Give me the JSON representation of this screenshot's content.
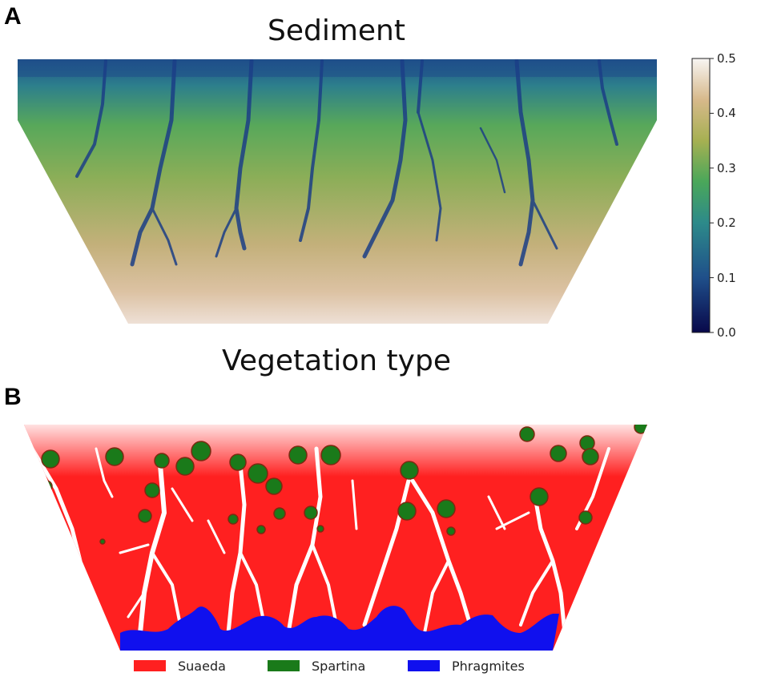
{
  "panel_a": {
    "letter": "A",
    "title": "Sediment",
    "colorbar_ticks": [
      "0.0",
      "0.1",
      "0.2",
      "0.3",
      "0.4",
      "0.5"
    ],
    "colorbar_range": [
      0,
      0.5
    ],
    "colormap": [
      "#08084a",
      "#1f4f8a",
      "#2d8a8a",
      "#4aa75a",
      "#a6b052",
      "#d7b98b",
      "#f7f5f3"
    ]
  },
  "panel_b": {
    "letter": "B",
    "title": "Vegetation type",
    "legend": [
      {
        "label": "Suaeda",
        "color": "#ff2020"
      },
      {
        "label": "Spartina",
        "color": "#1a7a1a"
      },
      {
        "label": "Phragmites",
        "color": "#1010ee"
      }
    ]
  }
}
